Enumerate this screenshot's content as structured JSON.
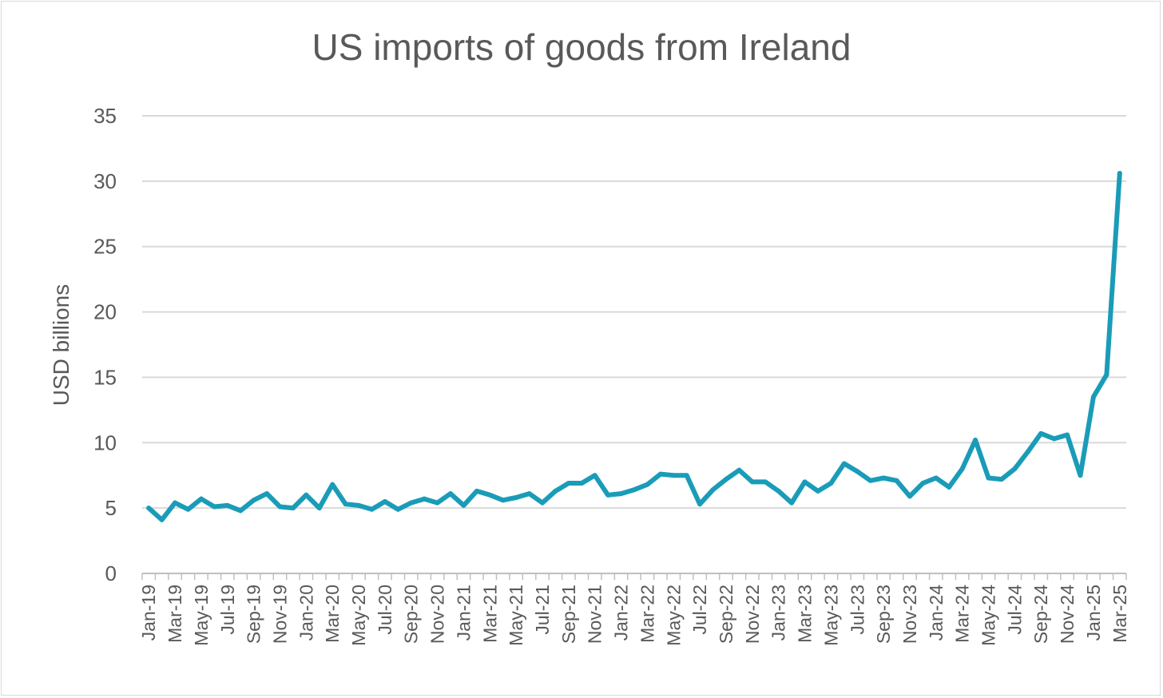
{
  "chart_data": {
    "type": "line",
    "title": "US imports of goods from Ireland",
    "xlabel": "",
    "ylabel": "USD billions",
    "ylim": [
      0,
      35
    ],
    "yticks": [
      0,
      5,
      10,
      15,
      20,
      25,
      30,
      35
    ],
    "grid": true,
    "legend": "none",
    "colors": {
      "line": "#1a9cb8",
      "grid": "#d9d9d9",
      "axis": "#bfbfbf",
      "text": "#595959"
    },
    "x_tick_labels": [
      "Jan-19",
      "Mar-19",
      "May-19",
      "Jul-19",
      "Sep-19",
      "Nov-19",
      "Jan-20",
      "Mar-20",
      "May-20",
      "Jul-20",
      "Sep-20",
      "Nov-20",
      "Jan-21",
      "Mar-21",
      "May-21",
      "Jul-21",
      "Sep-21",
      "Nov-21",
      "Jan-22",
      "Mar-22",
      "May-22",
      "Jul-22",
      "Sep-22",
      "Nov-22",
      "Jan-23",
      "Mar-23",
      "May-23",
      "Jul-23",
      "Sep-23",
      "Nov-23",
      "Jan-24",
      "Mar-24",
      "May-24",
      "Jul-24",
      "Sep-24",
      "Nov-24",
      "Jan-25",
      "Mar-25"
    ],
    "series": [
      {
        "values": [
          5.0,
          4.1,
          5.4,
          4.9,
          5.7,
          5.1,
          5.2,
          4.8,
          5.6,
          6.1,
          5.1,
          5.0,
          6.0,
          5.0,
          6.8,
          5.3,
          5.2,
          4.9,
          5.5,
          4.9,
          5.4,
          5.7,
          5.4,
          6.1,
          5.2,
          6.3,
          6.0,
          5.6,
          5.8,
          6.1,
          5.4,
          6.3,
          6.9,
          6.9,
          7.5,
          6.0,
          6.1,
          6.4,
          6.8,
          7.6,
          7.5,
          7.5,
          5.3,
          6.4,
          7.2,
          7.9,
          7.0,
          7.0,
          6.3,
          5.4,
          7.0,
          6.3,
          6.9,
          8.4,
          7.8,
          7.1,
          7.3,
          7.1,
          5.9,
          6.9,
          7.3,
          6.6,
          8.0,
          10.2,
          7.3,
          7.2,
          8.0,
          9.3,
          10.7,
          10.3,
          10.6,
          7.5,
          13.5,
          15.2,
          30.6
        ]
      }
    ]
  }
}
